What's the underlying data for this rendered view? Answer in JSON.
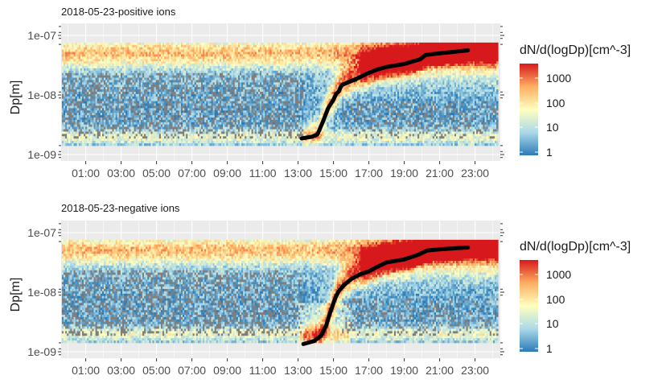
{
  "legend_title": "dN/d(logDp)[cm^-3]",
  "legend_labels": [
    "1000",
    "100",
    "10",
    "1"
  ],
  "colors": {
    "panel_background": "#ebebeb",
    "grid": "#ffffff",
    "missing": "#7f7f7f",
    "growth_line": "#000000",
    "scale": [
      "#2c7bb6",
      "#abd9e9",
      "#ffffbf",
      "#fdae61",
      "#d7191c"
    ]
  },
  "chart_data": [
    {
      "type": "heatmap",
      "title": "2018-05-23-positive ions",
      "xlabel": "",
      "ylabel": "Dp[m]",
      "x_ticks": [
        "01:00",
        "03:00",
        "05:00",
        "07:00",
        "09:00",
        "11:00",
        "13:00",
        "15:00",
        "17:00",
        "19:00",
        "21:00",
        "23:00"
      ],
      "y_ticks": [
        "1e-09",
        "1e-08",
        "1e-07"
      ],
      "xlim_hours": [
        0,
        24
      ],
      "ylim_log10_dp": [
        -9,
        -7
      ],
      "y_scale": "log",
      "color_scale": "log",
      "color_range": [
        1,
        3000
      ],
      "grid": true,
      "legend_position": "right",
      "growth_line": {
        "hours": [
          13.2,
          13.8,
          14.1,
          14.4,
          14.7,
          15.0,
          15.15,
          15.3,
          15.4,
          15.5,
          15.8,
          16.3,
          16.9,
          17.5,
          18.0,
          19.0,
          19.9,
          20.2,
          21.0,
          22.0,
          22.6
        ],
        "dp_log10": [
          -8.73,
          -8.7,
          -8.66,
          -8.45,
          -8.22,
          -8.08,
          -7.98,
          -7.94,
          -7.87,
          -7.83,
          -7.79,
          -7.73,
          -7.64,
          -7.57,
          -7.53,
          -7.48,
          -7.4,
          -7.33,
          -7.3,
          -7.27,
          -7.25
        ]
      }
    },
    {
      "type": "heatmap",
      "title": "2018-05-23-negative ions",
      "xlabel": "",
      "ylabel": "Dp[m]",
      "x_ticks": [
        "01:00",
        "03:00",
        "05:00",
        "07:00",
        "09:00",
        "11:00",
        "13:00",
        "15:00",
        "17:00",
        "19:00",
        "21:00",
        "23:00"
      ],
      "y_ticks": [
        "1e-09",
        "1e-08",
        "1e-07"
      ],
      "xlim_hours": [
        0,
        24
      ],
      "ylim_log10_dp": [
        -9,
        -7
      ],
      "y_scale": "log",
      "color_scale": "log",
      "color_range": [
        1,
        3000
      ],
      "grid": true,
      "legend_position": "right",
      "growth_line": {
        "hours": [
          13.3,
          13.9,
          14.3,
          14.6,
          14.8,
          15.1,
          15.3,
          15.6,
          16.0,
          16.5,
          17.0,
          17.5,
          18.0,
          19.0,
          19.8,
          20.3,
          21.0,
          22.0,
          22.6
        ],
        "dp_log10": [
          -8.87,
          -8.82,
          -8.73,
          -8.55,
          -8.35,
          -8.1,
          -7.98,
          -7.88,
          -7.78,
          -7.7,
          -7.65,
          -7.57,
          -7.5,
          -7.45,
          -7.37,
          -7.3,
          -7.28,
          -7.26,
          -7.25
        ]
      }
    }
  ]
}
